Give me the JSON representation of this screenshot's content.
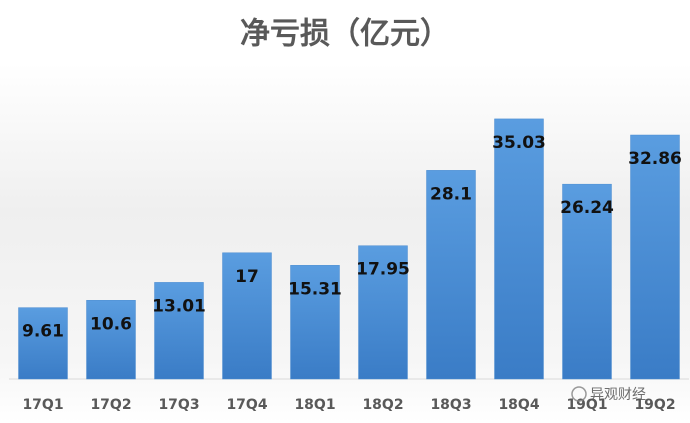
{
  "chart_data": {
    "type": "bar",
    "title": "净亏损（亿元）",
    "categories": [
      "17Q1",
      "17Q2",
      "17Q3",
      "17Q4",
      "18Q1",
      "18Q2",
      "18Q3",
      "18Q4",
      "19Q1",
      "19Q2"
    ],
    "values": [
      9.61,
      10.6,
      13.01,
      17,
      15.31,
      17.95,
      28.1,
      35.03,
      26.24,
      32.86
    ],
    "color": "#4a8bd0",
    "ylim": [
      0,
      40
    ]
  },
  "watermark": "异观财经"
}
